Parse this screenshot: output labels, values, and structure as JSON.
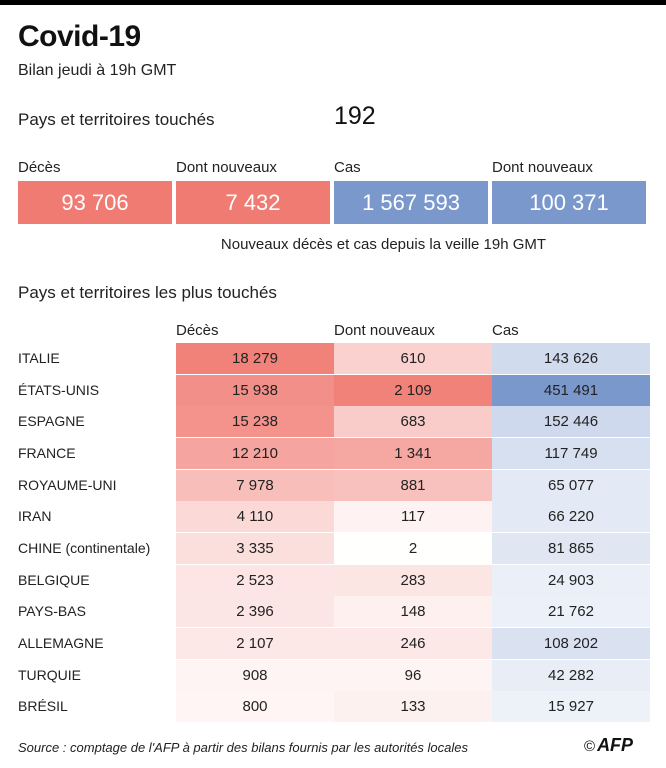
{
  "title": "Covid-19",
  "subtitle": "Bilan jeudi à 19h GMT",
  "countries_touched": {
    "label": "Pays et territoires touchés",
    "value": "192"
  },
  "summary": {
    "deaths": {
      "label": "Décès",
      "value": "93 706"
    },
    "new_deaths": {
      "label": "Dont nouveaux",
      "value": "7 432"
    },
    "cases": {
      "label": "Cas",
      "value": "1 567 593"
    },
    "new_cases": {
      "label": "Dont nouveaux",
      "value": "100 371"
    },
    "note": "Nouveaux décès et cas depuis la veille 19h GMT"
  },
  "table_title": "Pays et territoires les plus touchés",
  "colors": {
    "red": "#f07b73",
    "blue": "#7b98cd"
  },
  "chart_data": {
    "type": "table",
    "title": "Pays et territoires les plus touchés",
    "columns": [
      "Décès",
      "Dont nouveaux",
      "Cas"
    ],
    "rows": [
      {
        "country": "ITALIE",
        "deaths": 18279,
        "new": 610,
        "cases": 143626,
        "deaths_label": "18 279",
        "new_label": "610",
        "cases_label": "143 626"
      },
      {
        "country": "ÉTATS-UNIS",
        "deaths": 15938,
        "new": 2109,
        "cases": 451491,
        "deaths_label": "15 938",
        "new_label": "2 109",
        "cases_label": "451 491"
      },
      {
        "country": "ESPAGNE",
        "deaths": 15238,
        "new": 683,
        "cases": 152446,
        "deaths_label": "15 238",
        "new_label": "683",
        "cases_label": "152 446"
      },
      {
        "country": "FRANCE",
        "deaths": 12210,
        "new": 1341,
        "cases": 117749,
        "deaths_label": "12 210",
        "new_label": "1 341",
        "cases_label": "117 749"
      },
      {
        "country": "ROYAUME-UNI",
        "deaths": 7978,
        "new": 881,
        "cases": 65077,
        "deaths_label": "7 978",
        "new_label": "881",
        "cases_label": "65 077"
      },
      {
        "country": "IRAN",
        "deaths": 4110,
        "new": 117,
        "cases": 66220,
        "deaths_label": "4 110",
        "new_label": "117",
        "cases_label": "66 220"
      },
      {
        "country": "CHINE (continentale)",
        "deaths": 3335,
        "new": 2,
        "cases": 81865,
        "deaths_label": "3 335",
        "new_label": "2",
        "cases_label": "81 865"
      },
      {
        "country": "BELGIQUE",
        "deaths": 2523,
        "new": 283,
        "cases": 24903,
        "deaths_label": "2 523",
        "new_label": "283",
        "cases_label": "24 903"
      },
      {
        "country": "PAYS-BAS",
        "deaths": 2396,
        "new": 148,
        "cases": 21762,
        "deaths_label": "2 396",
        "new_label": "148",
        "cases_label": "21 762"
      },
      {
        "country": "ALLEMAGNE",
        "deaths": 2107,
        "new": 246,
        "cases": 108202,
        "deaths_label": "2 107",
        "new_label": "246",
        "cases_label": "108 202"
      },
      {
        "country": "TURQUIE",
        "deaths": 908,
        "new": 96,
        "cases": 42282,
        "deaths_label": "908",
        "new_label": "96",
        "cases_label": "42 282"
      },
      {
        "country": "BRÉSIL",
        "deaths": 800,
        "new": 133,
        "cases": 15927,
        "deaths_label": "800",
        "new_label": "133",
        "cases_label": "15 927"
      }
    ]
  },
  "source": "Source : comptage de l'AFP à partir des bilans fournis par les autorités locales",
  "logo": {
    "copyright": "©",
    "text": "AFP"
  }
}
